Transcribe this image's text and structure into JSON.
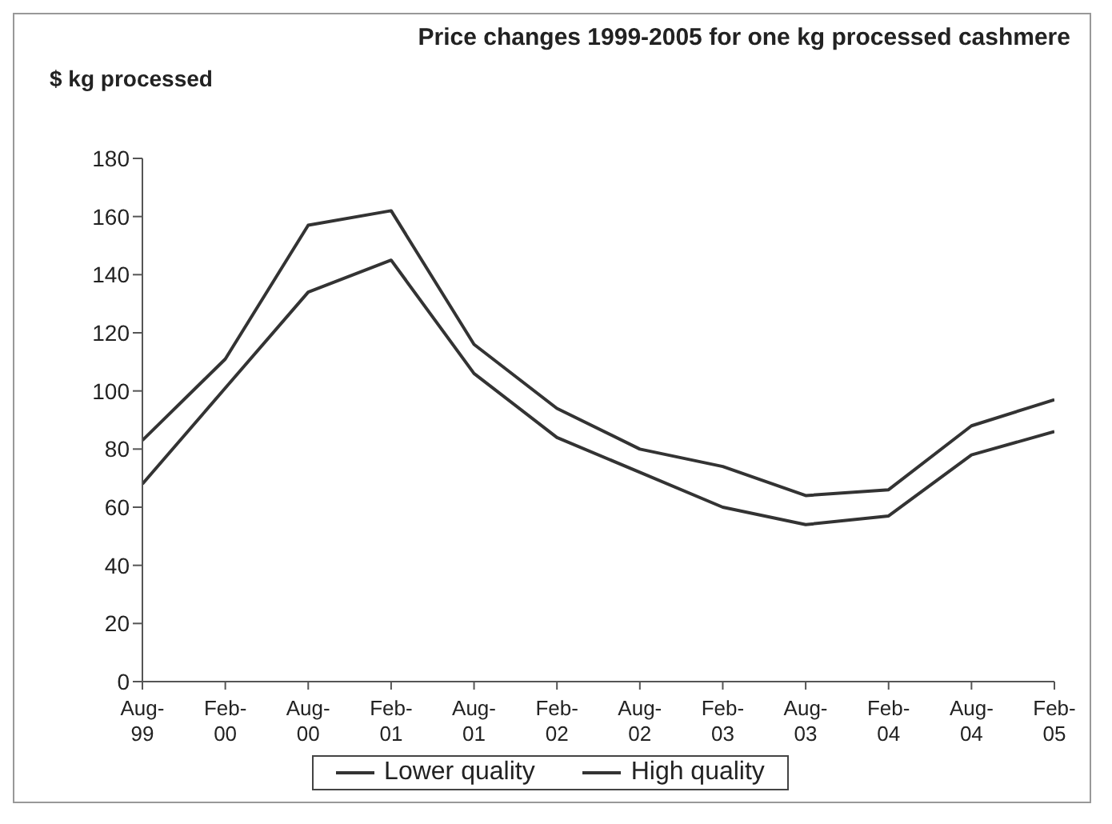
{
  "chart_data": {
    "type": "line",
    "title": "Price changes 1999-2005 for one kg processed cashmere",
    "ylabel": "$ kg processed",
    "categories": [
      "Aug-99",
      "Feb-00",
      "Aug-00",
      "Feb-01",
      "Aug-01",
      "Feb-02",
      "Aug-02",
      "Feb-03",
      "Aug-03",
      "Feb-04",
      "Aug-04",
      "Feb-05"
    ],
    "series": [
      {
        "name": "Lower quality",
        "color": "#333333",
        "values": [
          68,
          101,
          134,
          145,
          106,
          84,
          72,
          60,
          54,
          57,
          78,
          86
        ]
      },
      {
        "name": "High quality",
        "color": "#333333",
        "values": [
          83,
          111,
          157,
          162,
          116,
          94,
          80,
          74,
          64,
          66,
          88,
          97
        ]
      }
    ],
    "ylim": [
      0,
      180
    ],
    "yticks": [
      0,
      20,
      40,
      60,
      80,
      100,
      120,
      140,
      160,
      180
    ],
    "grid": false,
    "legend": "bottom",
    "marker": "none",
    "line_style": "solid"
  }
}
